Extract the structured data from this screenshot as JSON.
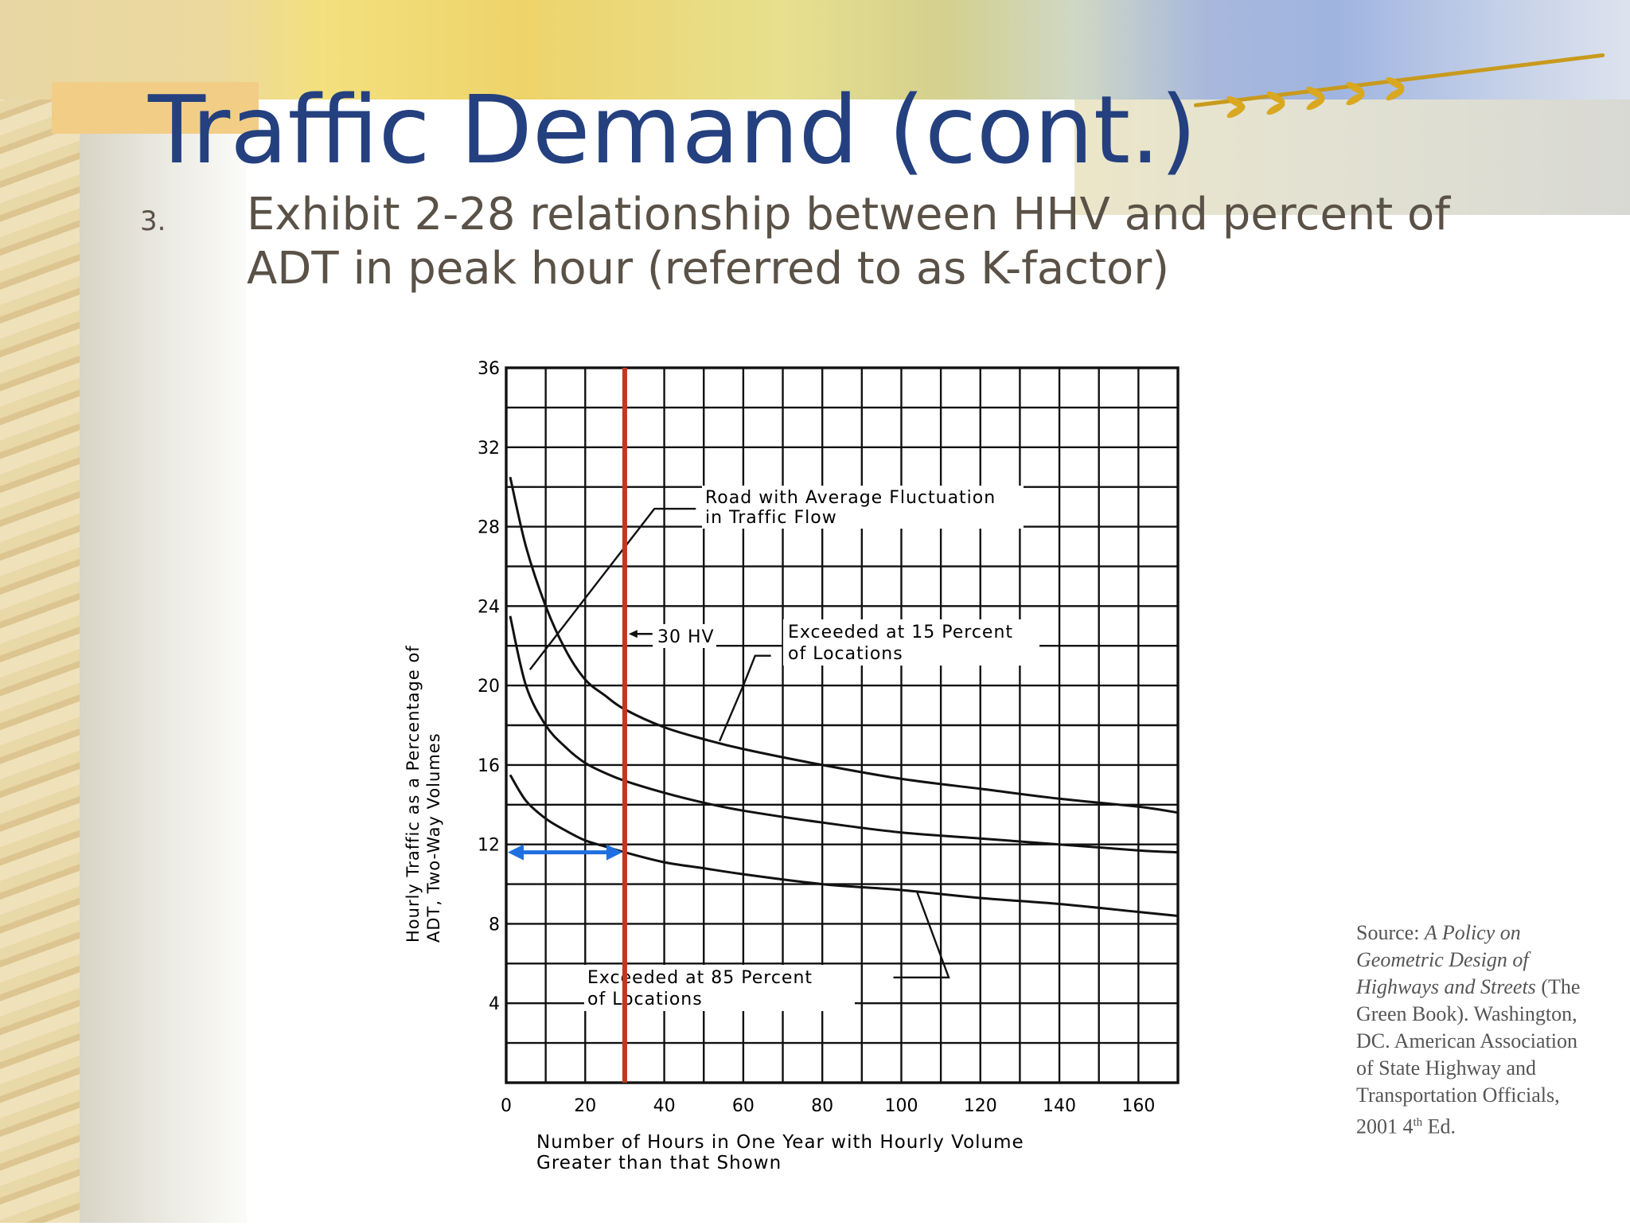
{
  "slide": {
    "title": "Traffic Demand (cont.)",
    "bullet_number": "3.",
    "bullet_line1": "Exhibit 2-28 relationship between HHV and percent of",
    "bullet_line2": "ADT in peak hour (referred to as K-factor)",
    "source": {
      "prefix": "Source: ",
      "book_title": "A Policy on Geometric Design of Highways and Streets",
      "rest1": "(The Green Book). Washington, DC. American Association of State Highway and Transportation Officials, 2001 4",
      "superscript": "th",
      "rest2": " Ed."
    }
  },
  "chart_data": {
    "type": "line",
    "xlabel_line1": "Number of Hours in One Year with Hourly Volume",
    "xlabel_line2": "Greater than that Shown",
    "ylabel_line1": "Hourly Traffic as a Percentage of",
    "ylabel_line2": "ADT, Two-Way Volumes",
    "xlim": [
      0,
      170
    ],
    "ylim": [
      0,
      36
    ],
    "x_ticks": [
      0,
      20,
      40,
      60,
      80,
      100,
      120,
      140,
      160
    ],
    "y_ticks": [
      4,
      8,
      12,
      16,
      20,
      24,
      28,
      32,
      36
    ],
    "grid": true,
    "series": [
      {
        "name": "Exceeded at 15 Percent of Locations",
        "x": [
          1,
          5,
          10,
          15,
          20,
          25,
          30,
          40,
          50,
          60,
          80,
          100,
          120,
          140,
          160,
          170
        ],
        "y": [
          30.5,
          27,
          24,
          21.8,
          20.3,
          19.5,
          18.8,
          17.9,
          17.3,
          16.8,
          16,
          15.3,
          14.8,
          14.3,
          13.9,
          13.6
        ]
      },
      {
        "name": "Road with Average Fluctuation in Traffic Flow",
        "x": [
          1,
          5,
          10,
          15,
          20,
          25,
          30,
          40,
          50,
          60,
          80,
          100,
          120,
          140,
          160,
          170
        ],
        "y": [
          23.5,
          20,
          18,
          16.9,
          16.1,
          15.6,
          15.2,
          14.6,
          14.1,
          13.7,
          13.1,
          12.6,
          12.3,
          12,
          11.7,
          11.6
        ]
      },
      {
        "name": "Exceeded at 85 Percent of Locations",
        "x": [
          1,
          5,
          10,
          15,
          20,
          25,
          30,
          40,
          50,
          60,
          80,
          100,
          120,
          140,
          160,
          170
        ],
        "y": [
          15.5,
          14.2,
          13.3,
          12.7,
          12.2,
          11.9,
          11.6,
          11.1,
          10.8,
          10.5,
          10,
          9.7,
          9.3,
          9,
          8.6,
          8.4
        ]
      }
    ],
    "annotations": {
      "avg_line1": "Road with Average Fluctuation",
      "avg_line2": "in Traffic Flow",
      "hv30": "30 HV",
      "exc15_line1": "Exceeded at 15 Percent",
      "exc15_line2": "of Locations",
      "exc85_line1": "Exceeded at 85 Percent",
      "exc85_line2": "of Locations"
    },
    "reference_line": {
      "x": 30,
      "color": "#c0391b"
    },
    "reference_arrow": {
      "x_from": 0,
      "x_to": 30,
      "y": 11.6,
      "color": "#1f6fe0"
    },
    "line_color": "#111111"
  }
}
